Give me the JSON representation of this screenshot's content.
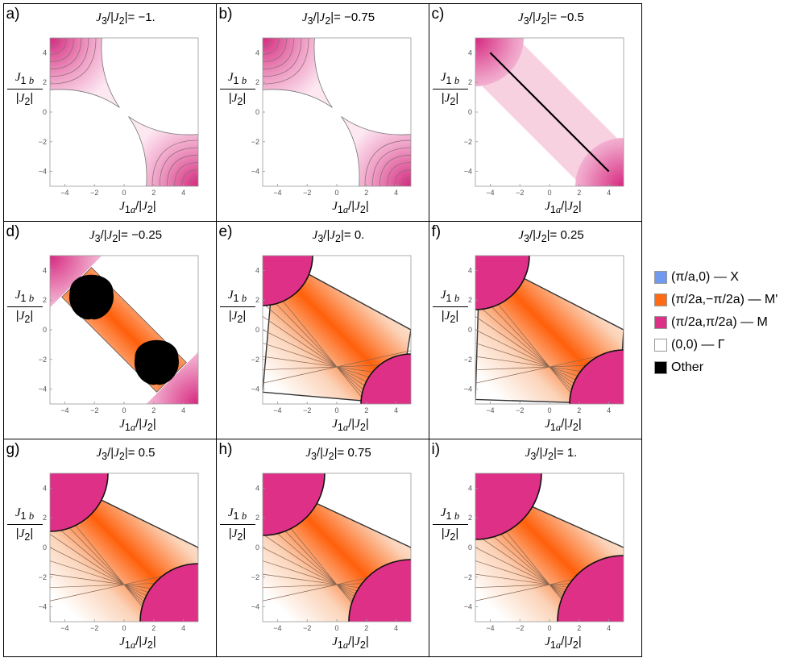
{
  "chart_data": [
    {
      "panel": "a)",
      "title": "J3/|J2|= -1.",
      "title_value": "−1.",
      "j3": -1.0,
      "type": "heatmap",
      "xlabel": "J1a/|J2|",
      "ylabel": "J1b/|J2|",
      "xlim": [
        -5,
        5
      ],
      "ylim": [
        -5,
        5
      ],
      "xticks": [
        "−4",
        "−2",
        "0",
        "2",
        "4"
      ],
      "yticks": [
        "4",
        "2",
        "0",
        "−2",
        "−4"
      ],
      "regions": [
        "M",
        "Γ"
      ]
    },
    {
      "panel": "b)",
      "title": "J3/|J2|= -0.75",
      "title_value": "−0.75",
      "j3": -0.75,
      "type": "heatmap",
      "xlabel": "J1a/|J2|",
      "ylabel": "J1b/|J2|",
      "xlim": [
        -5,
        5
      ],
      "ylim": [
        -5,
        5
      ],
      "xticks": [
        "−4",
        "−2",
        "0",
        "2",
        "4"
      ],
      "yticks": [
        "4",
        "2",
        "0",
        "−2",
        "−4"
      ],
      "regions": [
        "M",
        "Γ"
      ]
    },
    {
      "panel": "c)",
      "title": "J3/|J2|= -0.5",
      "title_value": "−0.5",
      "j3": -0.5,
      "type": "heatmap",
      "xlabel": "J1a/|J2|",
      "ylabel": "J1b/|J2|",
      "xlim": [
        -5,
        5
      ],
      "ylim": [
        -5,
        5
      ],
      "xticks": [
        "−4",
        "−2",
        "0",
        "2",
        "4"
      ],
      "yticks": [
        "4",
        "2",
        "0",
        "−2",
        "−4"
      ],
      "regions": [
        "M",
        "Γ"
      ],
      "line": [
        [
          -4,
          4
        ],
        [
          4,
          -4
        ]
      ]
    },
    {
      "panel": "d)",
      "title": "J3/|J2|= -0.25",
      "title_value": "−0.25",
      "j3": -0.25,
      "type": "heatmap",
      "xlabel": "J1a/|J2|",
      "ylabel": "J1b/|J2|",
      "xlim": [
        -5,
        5
      ],
      "ylim": [
        -5,
        5
      ],
      "xticks": [
        "−4",
        "−2",
        "0",
        "2",
        "4"
      ],
      "yticks": [
        "4",
        "2",
        "0",
        "−2",
        "−4"
      ],
      "regions": [
        "M",
        "M'",
        "Other",
        "Γ"
      ],
      "other_centers": [
        [
          -2.2,
          2.2
        ],
        [
          2.2,
          -2.2
        ]
      ]
    },
    {
      "panel": "e)",
      "title": "J3/|J2|= 0.",
      "title_value": "0.",
      "j3": 0.0,
      "type": "heatmap",
      "xlabel": "J1a/|J2|",
      "ylabel": "J1b/|J2|",
      "xlim": [
        -5,
        5
      ],
      "ylim": [
        -5,
        5
      ],
      "xticks": [
        "−4",
        "−2",
        "0",
        "2",
        "4"
      ],
      "yticks": [
        "4",
        "2",
        "0",
        "−2",
        "−4"
      ],
      "regions": [
        "M",
        "M'",
        "Γ"
      ]
    },
    {
      "panel": "f)",
      "title": "J3/|J2|= 0.25",
      "title_value": "0.25",
      "j3": 0.25,
      "type": "heatmap",
      "xlabel": "J1a/|J2|",
      "ylabel": "J1b/|J2|",
      "xlim": [
        -5,
        5
      ],
      "ylim": [
        -5,
        5
      ],
      "xticks": [
        "−4",
        "−2",
        "0",
        "2",
        "4"
      ],
      "yticks": [
        "4",
        "2",
        "0",
        "−2",
        "−4"
      ],
      "regions": [
        "M",
        "M'",
        "Γ"
      ]
    },
    {
      "panel": "g)",
      "title": "J3/|J2|= 0.5",
      "title_value": "0.5",
      "j3": 0.5,
      "type": "heatmap",
      "xlabel": "J1a/|J2|",
      "ylabel": "J1b/|J2|",
      "xlim": [
        -5,
        5
      ],
      "ylim": [
        -5,
        5
      ],
      "xticks": [
        "−4",
        "−2",
        "0",
        "2",
        "4"
      ],
      "yticks": [
        "4",
        "2",
        "0",
        "−2",
        "−4"
      ],
      "regions": [
        "M",
        "M'",
        "Γ"
      ]
    },
    {
      "panel": "h)",
      "title": "J3/|J2|= 0.75",
      "title_value": "0.75",
      "j3": 0.75,
      "type": "heatmap",
      "xlabel": "J1a/|J2|",
      "ylabel": "J1b/|J2|",
      "xlim": [
        -5,
        5
      ],
      "ylim": [
        -5,
        5
      ],
      "xticks": [
        "−4",
        "−2",
        "0",
        "2",
        "4"
      ],
      "yticks": [
        "4",
        "2",
        "0",
        "−2",
        "−4"
      ],
      "regions": [
        "M",
        "M'",
        "Γ"
      ]
    },
    {
      "panel": "i)",
      "title": "J3/|J2|= 1.",
      "title_value": "1.",
      "j3": 1.0,
      "type": "heatmap",
      "xlabel": "J1a/|J2|",
      "ylabel": "J1b/|J2|",
      "xlim": [
        -5,
        5
      ],
      "ylim": [
        -5,
        5
      ],
      "xticks": [
        "−4",
        "−2",
        "0",
        "2",
        "4"
      ],
      "yticks": [
        "4",
        "2",
        "0",
        "−2",
        "−4"
      ],
      "regions": [
        "M",
        "M'"
      ]
    }
  ],
  "legend": [
    {
      "label": "(π/a,0) — X",
      "color": "#6f9af0"
    },
    {
      "label": "(π/2a,−π/2a) — M'",
      "color": "#ff6a14"
    },
    {
      "label": "(π/2a,π/2a) — M",
      "color": "#de3087"
    },
    {
      "label": "(0,0) — Γ",
      "color": "#ffffff"
    },
    {
      "label": "Other",
      "color": "#000000"
    }
  ],
  "colors": {
    "M": "#de3087",
    "Mprime": "#ff6a14",
    "Gamma": "#ffffff",
    "Other": "#000000",
    "X": "#6f9af0"
  }
}
